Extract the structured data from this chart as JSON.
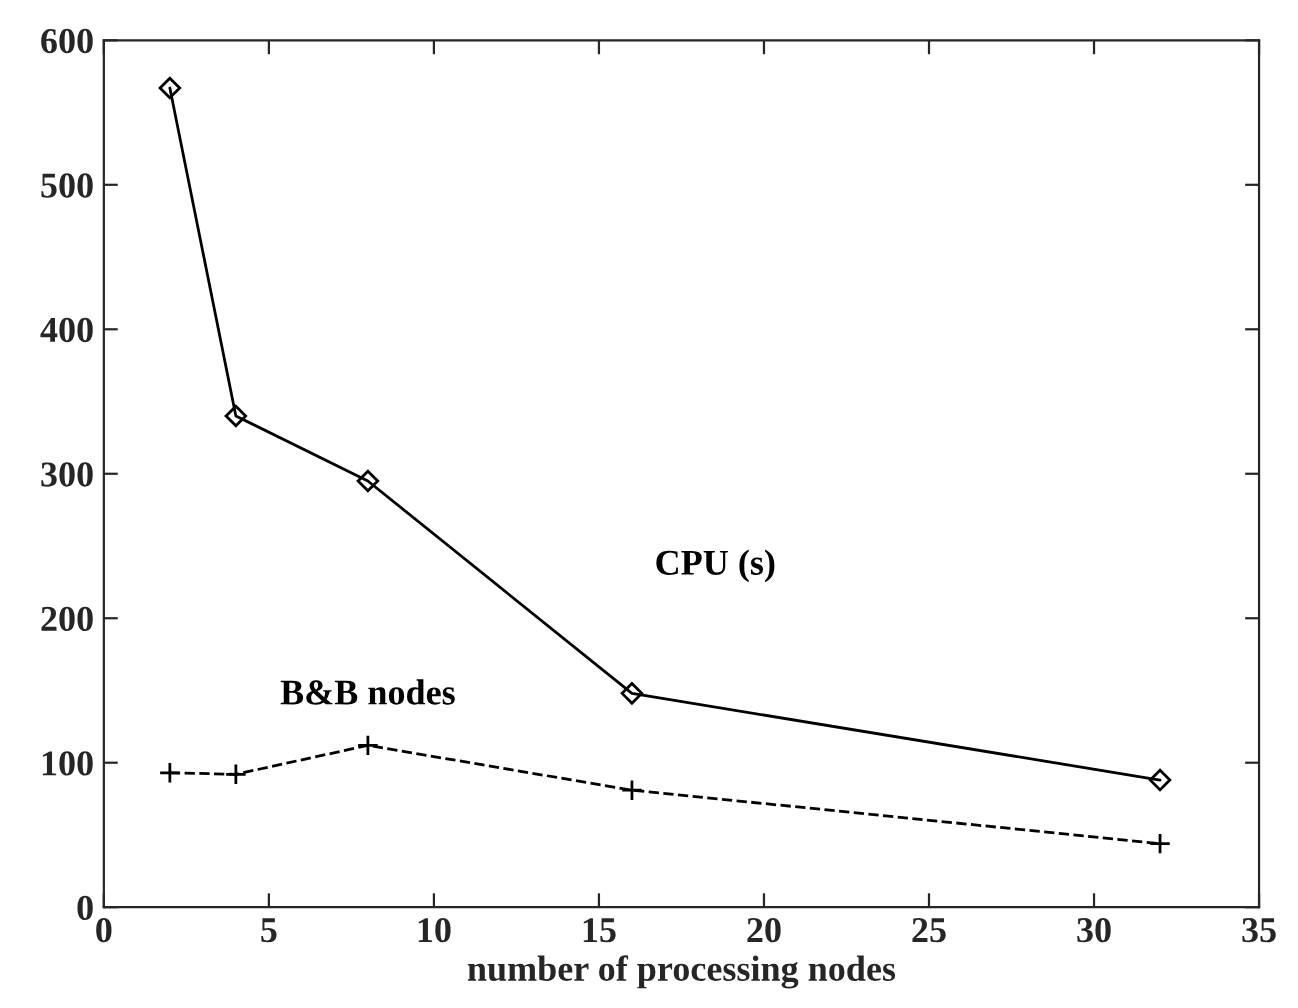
{
  "chart_data": {
    "type": "line",
    "xlabel": "number of processing nodes",
    "x": [
      2,
      4,
      8,
      16,
      32
    ],
    "series": [
      {
        "name": "CPU (s)",
        "color": "#000000",
        "values": [
          567,
          340,
          295,
          148,
          88
        ],
        "marker": "diamond",
        "line_style": "solid"
      },
      {
        "name": "B&B nodes",
        "color": "#000000",
        "values": [
          93,
          92,
          112,
          81,
          44
        ],
        "marker": "cross",
        "line_style": "dashed"
      }
    ],
    "xlim": [
      0,
      35
    ],
    "xticks": [
      0,
      5,
      10,
      15,
      20,
      25,
      30,
      35
    ],
    "ylim": [
      0,
      600
    ],
    "yticks": [
      0,
      100,
      200,
      300,
      400,
      500,
      600
    ],
    "grid": false,
    "legend": false
  }
}
